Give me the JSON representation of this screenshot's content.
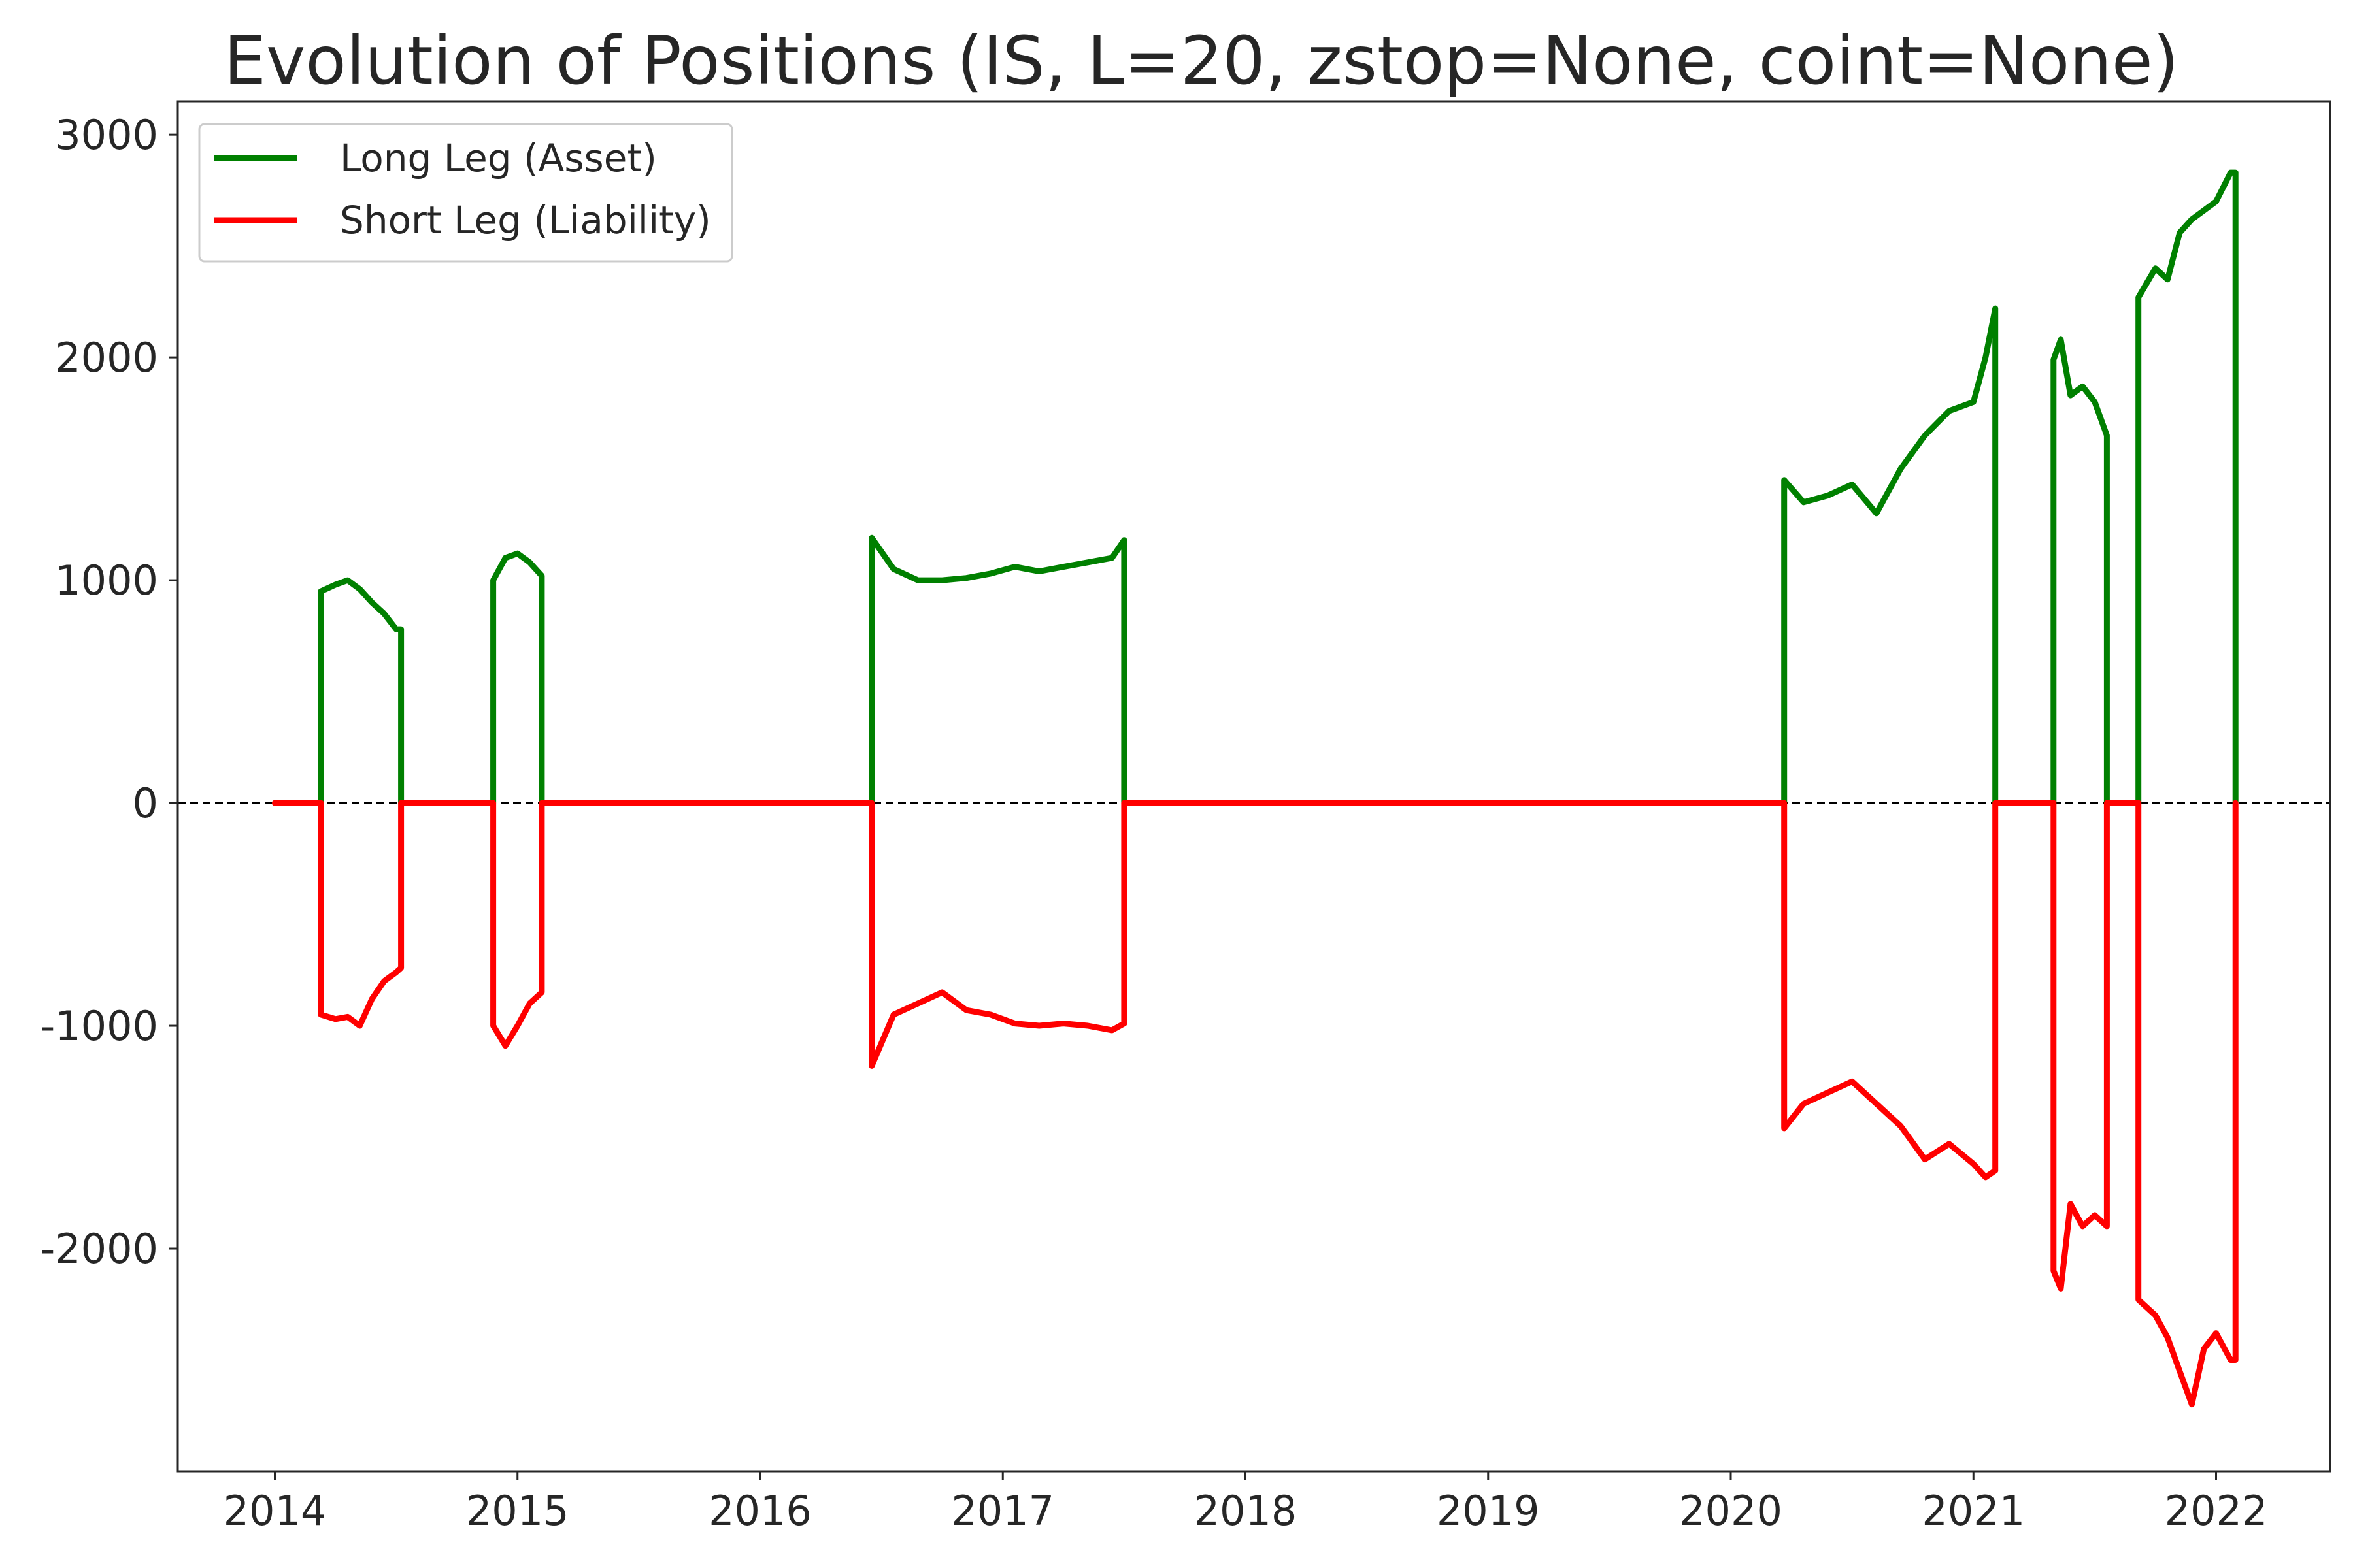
{
  "chart_data": {
    "type": "line",
    "title": "Evolution of Positions (IS, L=20, zstop=None, coint=None)",
    "xlabel": "",
    "ylabel": "",
    "xlim": [
      2013.6,
      2022.47
    ],
    "ylim": [
      -3000,
      3150
    ],
    "x_ticks": [
      2014,
      2015,
      2016,
      2017,
      2018,
      2019,
      2020,
      2021,
      2022
    ],
    "x_tick_labels": [
      "2014",
      "2015",
      "2016",
      "2017",
      "2018",
      "2019",
      "2020",
      "2021",
      "2022"
    ],
    "y_ticks": [
      3000,
      2000,
      1000,
      0,
      -1000,
      -2000
    ],
    "y_tick_labels": [
      "3000",
      "2000",
      "1000",
      "0",
      "-1000",
      "-2000"
    ],
    "zero_line": true,
    "grid": false,
    "legend_position": "top-left",
    "series": [
      {
        "name": "Long Leg (Asset)",
        "color": "#008000",
        "x": [
          2014.0,
          2014.19,
          2014.19,
          2014.25,
          2014.3,
          2014.35,
          2014.4,
          2014.45,
          2014.5,
          2014.52,
          2014.52,
          2014.9,
          2014.9,
          2014.95,
          2015.0,
          2015.05,
          2015.1,
          2015.1,
          2016.46,
          2016.46,
          2016.55,
          2016.65,
          2016.75,
          2016.85,
          2016.95,
          2017.05,
          2017.15,
          2017.25,
          2017.35,
          2017.45,
          2017.5,
          2017.5,
          2020.22,
          2020.22,
          2020.3,
          2020.4,
          2020.5,
          2020.6,
          2020.7,
          2020.8,
          2020.9,
          2021.0,
          2021.05,
          2021.09,
          2021.09,
          2021.33,
          2021.33,
          2021.36,
          2021.4,
          2021.45,
          2021.5,
          2021.55,
          2021.55,
          2021.68,
          2021.68,
          2021.75,
          2021.8,
          2021.85,
          2021.9,
          2021.95,
          2022.0,
          2022.06,
          2022.08,
          2022.08
        ],
        "values": [
          0,
          0,
          950,
          980,
          1000,
          960,
          900,
          850,
          780,
          780,
          0,
          0,
          1000,
          1100,
          1120,
          1080,
          1020,
          0,
          0,
          1190,
          1050,
          1000,
          1000,
          1010,
          1030,
          1060,
          1040,
          1060,
          1080,
          1100,
          1180,
          0,
          0,
          1450,
          1350,
          1380,
          1430,
          1300,
          1500,
          1650,
          1760,
          1800,
          2000,
          2220,
          0,
          0,
          1990,
          2080,
          1830,
          1870,
          1800,
          1650,
          0,
          0,
          2270,
          2400,
          2350,
          2560,
          2620,
          2660,
          2700,
          2830,
          2830,
          0
        ]
      },
      {
        "name": "Short Leg (Liability)",
        "color": "#ff0000",
        "x": [
          2014.0,
          2014.19,
          2014.19,
          2014.25,
          2014.3,
          2014.35,
          2014.4,
          2014.45,
          2014.5,
          2014.52,
          2014.52,
          2014.9,
          2014.9,
          2014.95,
          2015.0,
          2015.05,
          2015.1,
          2015.1,
          2016.46,
          2016.46,
          2016.55,
          2016.65,
          2016.75,
          2016.85,
          2016.95,
          2017.05,
          2017.15,
          2017.25,
          2017.35,
          2017.45,
          2017.5,
          2017.5,
          2020.22,
          2020.22,
          2020.3,
          2020.4,
          2020.5,
          2020.6,
          2020.7,
          2020.8,
          2020.9,
          2021.0,
          2021.05,
          2021.09,
          2021.09,
          2021.33,
          2021.33,
          2021.36,
          2021.4,
          2021.45,
          2021.5,
          2021.55,
          2021.55,
          2021.68,
          2021.68,
          2021.75,
          2021.8,
          2021.85,
          2021.9,
          2021.95,
          2022.0,
          2022.06,
          2022.08,
          2022.08
        ],
        "values": [
          0,
          0,
          -950,
          -970,
          -960,
          -1000,
          -880,
          -800,
          -760,
          -740,
          0,
          0,
          -1000,
          -1090,
          -1000,
          -900,
          -850,
          0,
          0,
          -1180,
          -950,
          -900,
          -850,
          -930,
          -950,
          -990,
          -1000,
          -990,
          -1000,
          -1020,
          -990,
          0,
          0,
          -1460,
          -1350,
          -1300,
          -1250,
          -1350,
          -1450,
          -1600,
          -1530,
          -1620,
          -1680,
          -1650,
          0,
          0,
          -2100,
          -2180,
          -1800,
          -1900,
          -1850,
          -1900,
          0,
          0,
          -2230,
          -2300,
          -2400,
          -2550,
          -2700,
          -2450,
          -2380,
          -2500,
          -2500,
          0
        ]
      }
    ]
  }
}
